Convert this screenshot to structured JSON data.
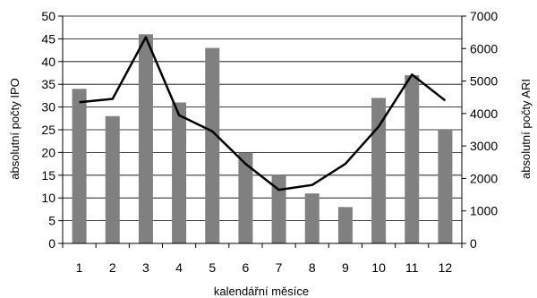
{
  "chart_data": {
    "type": "bar",
    "categories": [
      "1",
      "2",
      "3",
      "4",
      "5",
      "6",
      "7",
      "8",
      "9",
      "10",
      "11",
      "12"
    ],
    "series": [
      {
        "name": "",
        "type": "bar",
        "axis": "left",
        "values": [
          34,
          28,
          46,
          31,
          43,
          20,
          15,
          11,
          8,
          32,
          37,
          25
        ]
      },
      {
        "name": "",
        "type": "line",
        "axis": "right",
        "values": [
          4350,
          4450,
          6350,
          3950,
          3450,
          2450,
          1650,
          1800,
          2450,
          3600,
          5200,
          4400
        ]
      }
    ],
    "xlabel": "kalendářní měsíce",
    "ylabel": "absolutní počty IPO",
    "ylabel_right": "absolutní počty ARI",
    "ylim": [
      0,
      50
    ],
    "ylim_right": [
      0,
      7000
    ],
    "yticks": [
      "0",
      "5",
      "10",
      "15",
      "20",
      "25",
      "30",
      "35",
      "40",
      "45",
      "50"
    ],
    "yticks_right": [
      "0",
      "1000",
      "2000",
      "3000",
      "4000",
      "5000",
      "6000",
      "7000"
    ],
    "grid": true,
    "colors": {
      "bars": "#808080",
      "line": "#000000",
      "grid": "#000000"
    }
  }
}
